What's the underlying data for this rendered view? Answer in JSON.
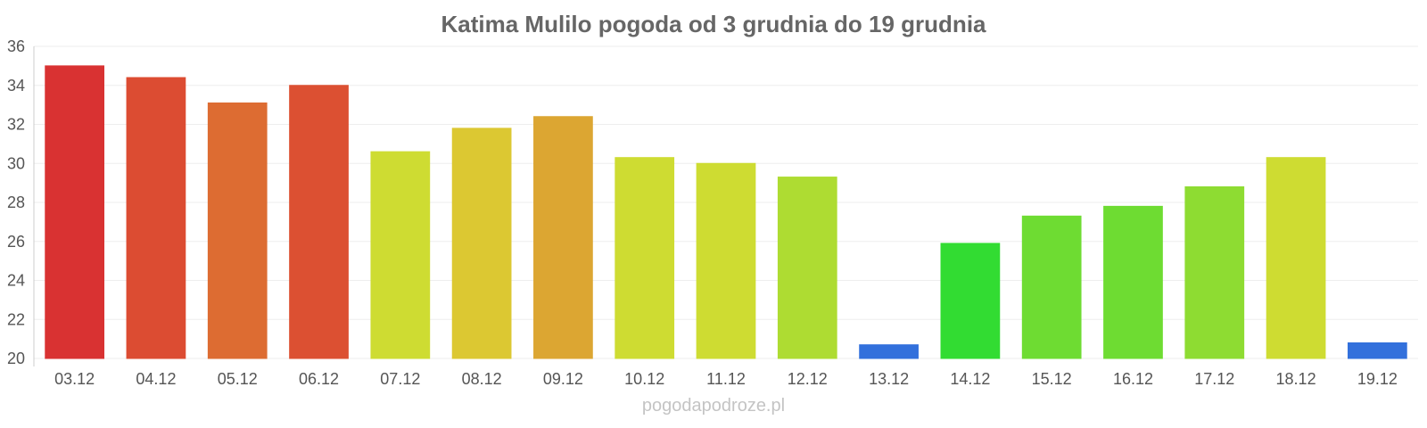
{
  "chart_data": {
    "type": "bar",
    "title": "Katima Mulilo pogoda od 3 grudnia do 19 grudnia",
    "categories": [
      "03.12",
      "04.12",
      "05.12",
      "06.12",
      "07.12",
      "08.12",
      "09.12",
      "10.12",
      "11.12",
      "12.12",
      "13.12",
      "14.12",
      "15.12",
      "16.12",
      "17.12",
      "18.12",
      "19.12"
    ],
    "values": [
      35,
      34.4,
      33.1,
      34,
      30.6,
      31.8,
      32.4,
      30.3,
      30,
      29.3,
      20.7,
      25.9,
      27.3,
      27.8,
      28.8,
      30.3,
      20.8
    ],
    "colors": [
      "#d93232",
      "#dc4c32",
      "#dd6c32",
      "#dc5032",
      "#cedc32",
      "#dcc832",
      "#dca632",
      "#cedc32",
      "#cedc32",
      "#aedc32",
      "#3270dc",
      "#32dc32",
      "#6edc32",
      "#6edc32",
      "#8edc32",
      "#cedc32",
      "#3270dc"
    ],
    "ylim": [
      20,
      36
    ],
    "yticks": [
      "20",
      "22",
      "24",
      "26",
      "28",
      "30",
      "32",
      "34",
      "36"
    ],
    "xlabel": "",
    "ylabel": "",
    "grid": true,
    "legend": "none"
  },
  "watermark": "pogodapodroze.pl"
}
